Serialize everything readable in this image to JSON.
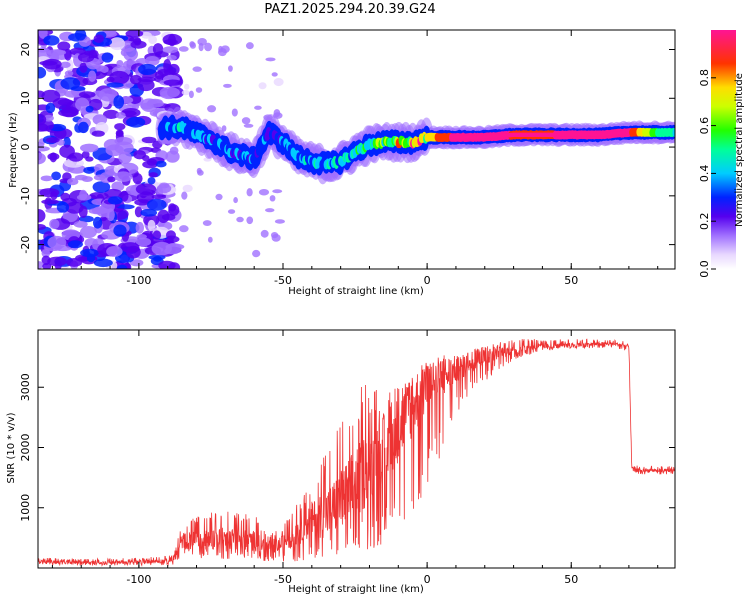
{
  "figure_title": "PAZ1.2025.294.20.39.G24",
  "colors": {
    "snr_line": "#ee3333",
    "frame": "#000000"
  },
  "chart_data": [
    {
      "type": "heatmap",
      "title": "PAZ1.2025.294.20.39.G24",
      "xlabel": "Height of straight line (km)",
      "ylabel": "Frequency (Hz)",
      "xlim": [
        -135,
        86
      ],
      "ylim": [
        -25,
        24
      ],
      "x_ticks": [
        -100,
        -50,
        0,
        50
      ],
      "y_ticks": [
        -20,
        -10,
        0,
        10,
        20
      ],
      "colorbar": {
        "label": "Normalized spectral amplitude",
        "range": [
          0,
          1
        ],
        "ticks": [
          "0.0",
          "0.2",
          "0.4",
          "0.6",
          "0.8"
        ],
        "tick_values": [
          0.0,
          0.2,
          0.4,
          0.6,
          0.8
        ]
      },
      "ridge": {
        "description_points_x": [
          -90,
          -85,
          -75,
          -68,
          -60,
          -55,
          -50,
          -45,
          -40,
          -35,
          -30,
          -25,
          -20,
          -15,
          -10,
          -5,
          0,
          10,
          20,
          30,
          40,
          50,
          60,
          70,
          80,
          86
        ],
        "frequency": [
          4,
          4,
          1.5,
          -1,
          -2.5,
          3,
          1,
          -2,
          -3,
          -3.5,
          -3,
          -1,
          0.5,
          1,
          1,
          1,
          2,
          2,
          2,
          2.5,
          2.5,
          2.5,
          2.5,
          3,
          3,
          3
        ],
        "amplitude": [
          0.35,
          0.35,
          0.3,
          0.3,
          0.25,
          0.3,
          0.3,
          0.35,
          0.4,
          0.4,
          0.4,
          0.45,
          0.5,
          0.6,
          0.75,
          0.8,
          0.7,
          0.9,
          0.95,
          0.85,
          0.8,
          0.95,
          0.95,
          0.9,
          0.5,
          0.4
        ]
      }
    },
    {
      "type": "line",
      "xlabel": "Height of straight line (km)",
      "ylabel": "SNR (10 * v/v)",
      "xlim": [
        -135,
        86
      ],
      "ylim": [
        0,
        3950
      ],
      "x_ticks": [
        -100,
        -50,
        0,
        50
      ],
      "y_ticks": [
        1000,
        2000,
        3000
      ],
      "series": [
        {
          "name": "SNR",
          "envelope_x": [
            -135,
            -120,
            -100,
            -88,
            -85,
            -80,
            -70,
            -60,
            -55,
            -50,
            -45,
            -40,
            -35,
            -30,
            -25,
            -20,
            -15,
            -10,
            -5,
            0,
            5,
            10,
            15,
            20,
            25,
            30,
            40,
            50,
            60,
            65,
            70,
            71,
            72,
            80,
            86
          ],
          "envelope_low": [
            60,
            40,
            40,
            50,
            200,
            150,
            150,
            150,
            100,
            100,
            100,
            150,
            200,
            200,
            250,
            300,
            400,
            600,
            900,
            1300,
            1900,
            2500,
            2900,
            3100,
            3300,
            3450,
            3600,
            3650,
            3650,
            3650,
            3600,
            1600,
            1550,
            1550,
            1550
          ],
          "envelope_high": [
            180,
            150,
            170,
            220,
            800,
            900,
            950,
            900,
            600,
            700,
            1100,
            1500,
            2000,
            2500,
            3000,
            3100,
            2900,
            3100,
            3250,
            3350,
            3550,
            3500,
            3600,
            3700,
            3750,
            3800,
            3800,
            3800,
            3800,
            3800,
            3750,
            1800,
            1700,
            1700,
            1700
          ],
          "typical": [
            110,
            90,
            100,
            120,
            450,
            450,
            500,
            450,
            350,
            400,
            600,
            800,
            900,
            1100,
            1400,
            1700,
            2000,
            2300,
            2700,
            3000,
            3150,
            3300,
            3400,
            3500,
            3580,
            3620,
            3680,
            3700,
            3720,
            3720,
            3680,
            1650,
            1620,
            1620,
            1620
          ]
        }
      ]
    }
  ]
}
